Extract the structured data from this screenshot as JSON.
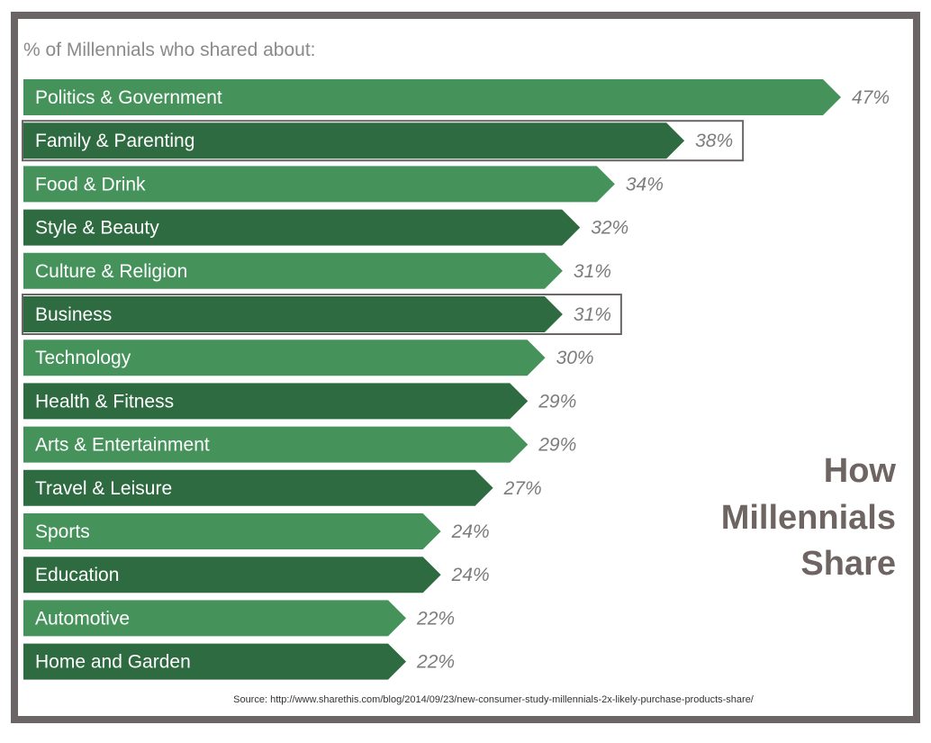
{
  "chart_data": {
    "type": "bar",
    "orientation": "horizontal",
    "subtitle": "% of Millennials who shared about:",
    "side_title": [
      "How",
      "Millennials",
      "Share"
    ],
    "categories": [
      "Politics & Government",
      "Family & Parenting",
      "Food & Drink",
      "Style & Beauty",
      "Culture & Religion",
      "Business",
      "Technology",
      "Health & Fitness",
      "Arts & Entertainment",
      "Travel & Leisure",
      "Sports",
      "Education",
      "Automotive",
      "Home and Garden"
    ],
    "values": [
      47,
      38,
      34,
      32,
      31,
      31,
      30,
      29,
      29,
      27,
      24,
      24,
      22,
      22
    ],
    "value_labels": [
      "47%",
      "38%",
      "34%",
      "32%",
      "31%",
      "31%",
      "30%",
      "29%",
      "29%",
      "27%",
      "24%",
      "24%",
      "22%",
      "22%"
    ],
    "highlighted": [
      false,
      true,
      false,
      false,
      false,
      true,
      false,
      false,
      false,
      false,
      false,
      false,
      false,
      false
    ],
    "xlim": [
      0,
      47
    ],
    "colors": {
      "light_bar": "#45935b",
      "dark_bar": "#2e6b40",
      "value_text": "#7c7c7c",
      "title_text": "#6e6563",
      "frame": "#6b6665"
    },
    "source": "Source: http://www.sharethis.com/blog/2014/09/23/new-consumer-study-millennials-2x-likely-purchase-products-share/",
    "grid": false,
    "legend": "none"
  }
}
